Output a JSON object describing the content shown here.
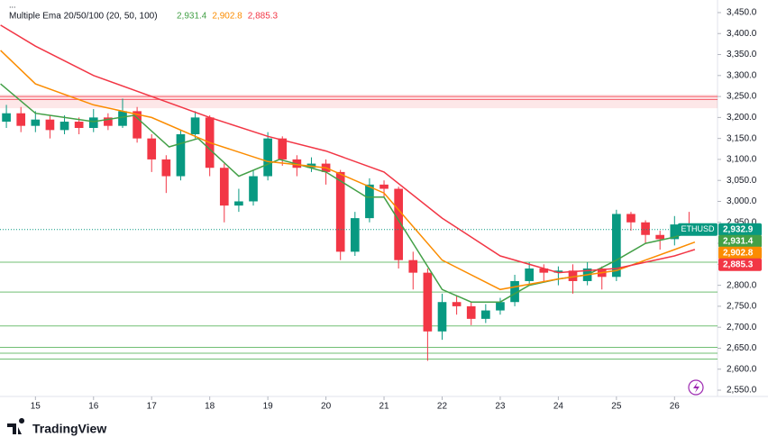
{
  "chart_data": {
    "type": "candlestick",
    "indicator": "Multiple Ema 20/50/100 (20, 50, 100)",
    "symbol": "ETHUSD",
    "last_price": {
      "value": 2932.9,
      "label": "2,932.9"
    },
    "branding": "TradingView",
    "up_color": "#089981",
    "down_color": "#f23645",
    "x": [
      14.5,
      14.75,
      15,
      15.25,
      15.5,
      15.75,
      16,
      16.25,
      16.5,
      16.75,
      17,
      17.25,
      17.5,
      17.75,
      18,
      18.25,
      18.5,
      18.75,
      19,
      19.25,
      19.5,
      19.75,
      20,
      20.25,
      20.5,
      20.75,
      21,
      21.25,
      21.5,
      21.75,
      22,
      22.25,
      22.5,
      22.75,
      23,
      23.25,
      23.5,
      23.75,
      24,
      24.25,
      24.5,
      24.75,
      25,
      25.25,
      25.5,
      25.75,
      26,
      26.25
    ],
    "open": [
      3190,
      3210,
      3180,
      3195,
      3170,
      3190,
      3175,
      3200,
      3180,
      3215,
      3150,
      3100,
      3060,
      3160,
      3200,
      3080,
      2990,
      3000,
      3060,
      3150,
      3100,
      3080,
      3090,
      3070,
      2880,
      2960,
      3040,
      3030,
      2860,
      2830,
      2690,
      2760,
      2750,
      2720,
      2740,
      2760,
      2810,
      2840,
      2830,
      2835,
      2810,
      2840,
      2820,
      2970,
      2950,
      2920,
      2910,
      2945
    ],
    "high": [
      3230,
      3225,
      3215,
      3205,
      3205,
      3200,
      3220,
      3210,
      3245,
      3225,
      3160,
      3110,
      3170,
      3215,
      3205,
      3090,
      3030,
      3075,
      3165,
      3155,
      3110,
      3105,
      3100,
      3075,
      2975,
      3055,
      3050,
      3035,
      2880,
      2840,
      2780,
      2775,
      2760,
      2755,
      2770,
      2825,
      2855,
      2850,
      2845,
      2850,
      2855,
      2845,
      2980,
      2975,
      2955,
      2930,
      2965,
      2975
    ],
    "low": [
      3175,
      3165,
      3165,
      3150,
      3160,
      3160,
      3165,
      3170,
      3175,
      3140,
      3070,
      3020,
      3050,
      3150,
      3060,
      2950,
      2975,
      2990,
      3050,
      3085,
      3060,
      3070,
      3040,
      2860,
      2870,
      2950,
      3010,
      2840,
      2790,
      2620,
      2670,
      2730,
      2705,
      2710,
      2730,
      2750,
      2800,
      2810,
      2800,
      2780,
      2800,
      2790,
      2810,
      2930,
      2900,
      2885,
      2895,
      2925
    ],
    "close": [
      3210,
      3180,
      3195,
      3170,
      3190,
      3175,
      3200,
      3180,
      3215,
      3150,
      3100,
      3060,
      3160,
      3200,
      3080,
      2990,
      3000,
      3060,
      3150,
      3100,
      3080,
      3090,
      3070,
      2880,
      2960,
      3040,
      3030,
      2860,
      2830,
      2690,
      2760,
      2750,
      2720,
      2740,
      2760,
      2810,
      2840,
      2830,
      2835,
      2810,
      2840,
      2820,
      2970,
      2950,
      2920,
      2910,
      2945,
      2933
    ],
    "lines": [
      {
        "color": "#43a047",
        "x": [
          14.4,
          15,
          16,
          16.7,
          17.3,
          17.8,
          18.5,
          19.2,
          20,
          20.7,
          21,
          21.5,
          22,
          22.5,
          23,
          23.5,
          24,
          24.5,
          25,
          25.5,
          26,
          26.35
        ],
        "values": [
          3280,
          3210,
          3190,
          3205,
          3130,
          3150,
          3060,
          3100,
          3070,
          3010,
          3010,
          2900,
          2790,
          2760,
          2760,
          2800,
          2815,
          2825,
          2860,
          2900,
          2915,
          2931.4
        ],
        "last": {
          "value": 2931.4,
          "label": "2,931.4"
        }
      },
      {
        "color": "#fb8c00",
        "x": [
          14.4,
          15,
          16,
          17,
          18,
          19,
          20,
          21,
          22,
          23,
          24,
          25,
          26,
          26.35
        ],
        "values": [
          3360,
          3280,
          3230,
          3200,
          3140,
          3095,
          3080,
          3020,
          2860,
          2790,
          2815,
          2835,
          2885,
          2902.8
        ],
        "last": {
          "value": 2902.8,
          "label": "2,902.8"
        }
      },
      {
        "color": "#f23645",
        "x": [
          14.4,
          15,
          16,
          17,
          18,
          19,
          20,
          21,
          22,
          23,
          24,
          25,
          26,
          26.35
        ],
        "values": [
          3420,
          3370,
          3300,
          3250,
          3200,
          3155,
          3120,
          3070,
          2960,
          2870,
          2830,
          2840,
          2870,
          2885.3
        ],
        "last": {
          "value": 2885.3,
          "label": "2,885.3"
        }
      }
    ],
    "zone": {
      "range": [
        3222,
        3255
      ],
      "color": "#f23645"
    },
    "levels": [
      {
        "value": 3250,
        "color": "#f23645"
      },
      {
        "value": 3243,
        "color": "#f23645"
      },
      {
        "value": 2855,
        "color": "#4caf50"
      },
      {
        "value": 2784,
        "color": "#4caf50"
      },
      {
        "value": 2703,
        "color": "#4caf50"
      },
      {
        "value": 2652,
        "color": "#4caf50"
      },
      {
        "value": 2638,
        "color": "#4caf50"
      },
      {
        "value": 2624,
        "color": "#4caf50"
      }
    ],
    "xlim": [
      14.39,
      26.74
    ],
    "xticks": [
      15,
      16,
      17,
      18,
      19,
      20,
      21,
      22,
      23,
      24,
      25,
      26
    ],
    "ylim": [
      2535,
      3480
    ],
    "yticks": [
      {
        "value": 2550,
        "label": "2,550.0"
      },
      {
        "value": 2600,
        "label": "2,600.0"
      },
      {
        "value": 2650,
        "label": "2,650.0"
      },
      {
        "value": 2700,
        "label": "2,700.0"
      },
      {
        "value": 2750,
        "label": "2,750.0"
      },
      {
        "value": 2800,
        "label": "2,800.0"
      },
      {
        "value": 2850,
        "label": "2,850.0"
      },
      {
        "value": 2900,
        "label": "2,900.0"
      },
      {
        "value": 2950,
        "label": "2,950.0"
      },
      {
        "value": 3000,
        "label": "3,000.0"
      },
      {
        "value": 3050,
        "label": "3,050.0"
      },
      {
        "value": 3100,
        "label": "3,100.0"
      },
      {
        "value": 3150,
        "label": "3,150.0"
      },
      {
        "value": 3200,
        "label": "3,200.0"
      },
      {
        "value": 3250,
        "label": "3,250.0"
      },
      {
        "value": 3300,
        "label": "3,300.0"
      },
      {
        "value": 3350,
        "label": "3,350.0"
      },
      {
        "value": 3400,
        "label": "3,400.0"
      },
      {
        "value": 3450,
        "label": "3,450.0"
      }
    ]
  }
}
